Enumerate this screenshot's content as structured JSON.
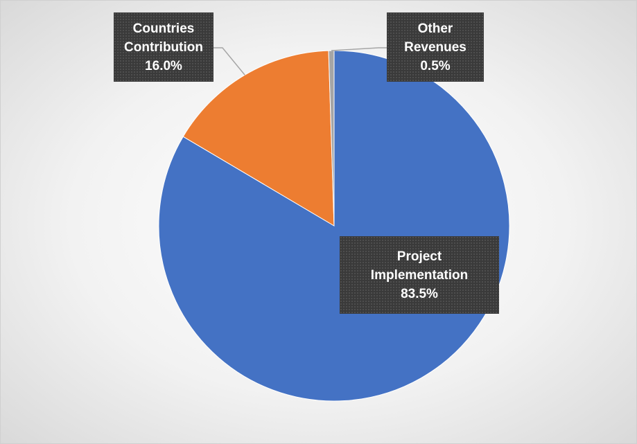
{
  "chart_data": {
    "type": "pie",
    "categories": [
      "Project Implementation",
      "Countries Contribution",
      "Other Revenues"
    ],
    "values": [
      83.5,
      16.0,
      0.5
    ],
    "value_labels": [
      "83.5%",
      "16.0%",
      "0.5%"
    ],
    "colors": [
      "#4472c4",
      "#ed7d31",
      "#a5a5a5"
    ],
    "start_angle": 0,
    "direction": "clockwise"
  }
}
